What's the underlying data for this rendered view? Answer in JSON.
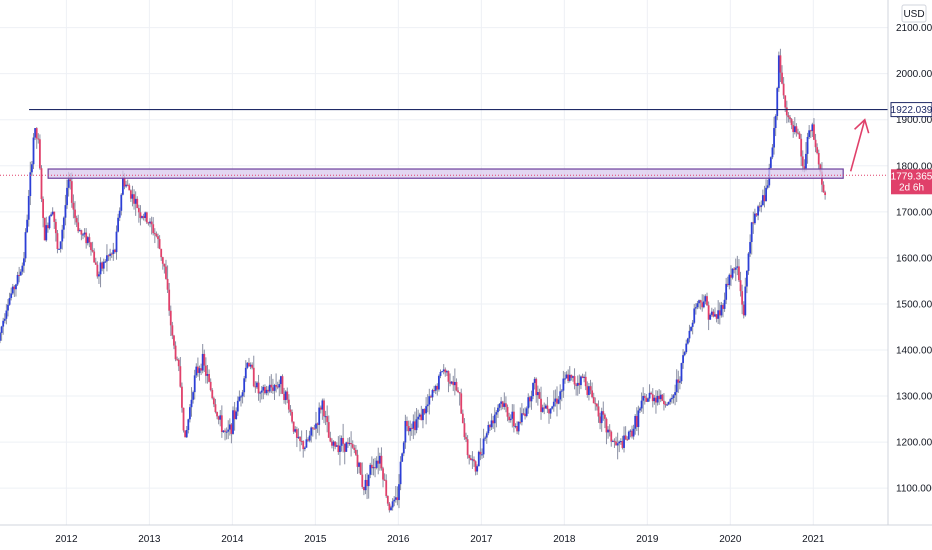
{
  "chart_data": {
    "type": "candlestick",
    "currency": "USD",
    "ylim": [
      1020,
      2160
    ],
    "y_ticks": [
      "2100.000",
      "2000.000",
      "1900.000",
      "1800.000",
      "1700.000",
      "1600.000",
      "1500.000",
      "1400.000",
      "1300.000",
      "1200.000",
      "1100.000"
    ],
    "y_tick_values": [
      2100,
      2000,
      1900,
      1800,
      1700,
      1600,
      1500,
      1400,
      1300,
      1200,
      1100
    ],
    "x_ticks": [
      "2012",
      "2013",
      "2014",
      "2015",
      "2016",
      "2017",
      "2018",
      "2019",
      "2020",
      "2021"
    ],
    "x_tick_values": [
      2012.0,
      2013.0,
      2014.0,
      2015.0,
      2016.0,
      2017.0,
      2018.0,
      2019.0,
      2020.0,
      2021.0
    ],
    "xlim": [
      2011.2,
      2021.9
    ],
    "price_path": [
      [
        2011.2,
        1420
      ],
      [
        2011.3,
        1500
      ],
      [
        2011.4,
        1540
      ],
      [
        2011.5,
        1590
      ],
      [
        2011.58,
        1760
      ],
      [
        2011.63,
        1880
      ],
      [
        2011.68,
        1850
      ],
      [
        2011.75,
        1640
      ],
      [
        2011.85,
        1720
      ],
      [
        2011.92,
        1600
      ],
      [
        2012.05,
        1770
      ],
      [
        2012.12,
        1690
      ],
      [
        2012.2,
        1650
      ],
      [
        2012.3,
        1640
      ],
      [
        2012.4,
        1560
      ],
      [
        2012.5,
        1600
      ],
      [
        2012.6,
        1610
      ],
      [
        2012.7,
        1770
      ],
      [
        2012.8,
        1740
      ],
      [
        2012.9,
        1700
      ],
      [
        2013.0,
        1680
      ],
      [
        2013.1,
        1650
      ],
      [
        2013.2,
        1580
      ],
      [
        2013.3,
        1420
      ],
      [
        2013.38,
        1350
      ],
      [
        2013.45,
        1200
      ],
      [
        2013.55,
        1330
      ],
      [
        2013.65,
        1380
      ],
      [
        2013.75,
        1320
      ],
      [
        2013.85,
        1250
      ],
      [
        2013.95,
        1210
      ],
      [
        2014.05,
        1260
      ],
      [
        2014.15,
        1330
      ],
      [
        2014.2,
        1380
      ],
      [
        2014.35,
        1300
      ],
      [
        2014.5,
        1320
      ],
      [
        2014.6,
        1330
      ],
      [
        2014.7,
        1280
      ],
      [
        2014.8,
        1200
      ],
      [
        2014.9,
        1190
      ],
      [
        2015.05,
        1250
      ],
      [
        2015.1,
        1290
      ],
      [
        2015.2,
        1190
      ],
      [
        2015.35,
        1200
      ],
      [
        2015.5,
        1180
      ],
      [
        2015.6,
        1100
      ],
      [
        2015.7,
        1150
      ],
      [
        2015.8,
        1170
      ],
      [
        2015.9,
        1060
      ],
      [
        2016.0,
        1070
      ],
      [
        2016.1,
        1240
      ],
      [
        2016.2,
        1240
      ],
      [
        2016.35,
        1270
      ],
      [
        2016.5,
        1330
      ],
      [
        2016.55,
        1360
      ],
      [
        2016.65,
        1340
      ],
      [
        2016.75,
        1300
      ],
      [
        2016.85,
        1180
      ],
      [
        2016.95,
        1140
      ],
      [
        2017.05,
        1210
      ],
      [
        2017.15,
        1250
      ],
      [
        2017.25,
        1290
      ],
      [
        2017.35,
        1260
      ],
      [
        2017.45,
        1230
      ],
      [
        2017.55,
        1270
      ],
      [
        2017.65,
        1330
      ],
      [
        2017.75,
        1280
      ],
      [
        2017.85,
        1280
      ],
      [
        2017.95,
        1300
      ],
      [
        2018.05,
        1340
      ],
      [
        2018.15,
        1330
      ],
      [
        2018.25,
        1340
      ],
      [
        2018.35,
        1300
      ],
      [
        2018.45,
        1260
      ],
      [
        2018.55,
        1220
      ],
      [
        2018.65,
        1190
      ],
      [
        2018.75,
        1200
      ],
      [
        2018.85,
        1230
      ],
      [
        2018.95,
        1280
      ],
      [
        2019.05,
        1300
      ],
      [
        2019.15,
        1300
      ],
      [
        2019.3,
        1280
      ],
      [
        2019.4,
        1340
      ],
      [
        2019.5,
        1420
      ],
      [
        2019.6,
        1500
      ],
      [
        2019.7,
        1510
      ],
      [
        2019.8,
        1470
      ],
      [
        2019.9,
        1480
      ],
      [
        2020.0,
        1560
      ],
      [
        2020.1,
        1580
      ],
      [
        2020.18,
        1480
      ],
      [
        2020.25,
        1640
      ],
      [
        2020.35,
        1710
      ],
      [
        2020.45,
        1740
      ],
      [
        2020.55,
        1870
      ],
      [
        2020.6,
        2030
      ],
      [
        2020.65,
        1960
      ],
      [
        2020.75,
        1880
      ],
      [
        2020.85,
        1860
      ],
      [
        2020.9,
        1780
      ],
      [
        2020.95,
        1860
      ],
      [
        2021.0,
        1880
      ],
      [
        2021.05,
        1840
      ],
      [
        2021.1,
        1790
      ],
      [
        2021.15,
        1730
      ]
    ],
    "resistance_line": {
      "value": 1922.039,
      "label": "1922.039"
    },
    "support_zone": {
      "lower": 1773,
      "upper": 1793,
      "x_start": 2011.78,
      "x_end": 2021.36
    },
    "current_price": {
      "value": 1779.365,
      "label": "1779.365",
      "countdown": "2d 6h"
    },
    "projection_arrow": {
      "from": [
        2021.45,
        1788
      ],
      "to": [
        2021.62,
        1900
      ]
    },
    "colors": {
      "up": "#2c3fd6",
      "down": "#e0406a",
      "wick": "#8a8fa3",
      "resistance": "#1f2a66",
      "zone_fill": "#d9c9ec",
      "zone_border": "#6c3f9c",
      "price_line": "#e0406a",
      "arrow": "#e0406a"
    }
  }
}
